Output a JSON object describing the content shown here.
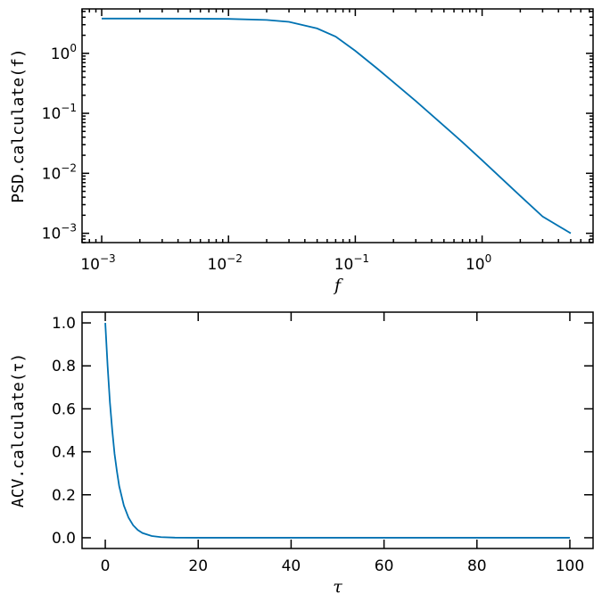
{
  "chart_data": [
    {
      "type": "line",
      "xscale": "log",
      "yscale": "log",
      "xlabel": "f",
      "ylabel": "PSD.calculate(f)",
      "xlim": [
        0.0007,
        7.5
      ],
      "ylim": [
        0.0007,
        5.5
      ],
      "x_ticks": [
        {
          "value": 0.001,
          "base": "10",
          "exp": "−3"
        },
        {
          "value": 0.01,
          "base": "10",
          "exp": "−2"
        },
        {
          "value": 0.1,
          "base": "10",
          "exp": "−1"
        },
        {
          "value": 1,
          "base": "10",
          "exp": "0"
        }
      ],
      "y_ticks": [
        {
          "value": 0.001,
          "base": "10",
          "exp": "−3"
        },
        {
          "value": 0.01,
          "base": "10",
          "exp": "−2"
        },
        {
          "value": 0.1,
          "base": "10",
          "exp": "−1"
        },
        {
          "value": 1,
          "base": "10",
          "exp": "0"
        }
      ],
      "color": "#0072b2",
      "series": [
        {
          "x": [
            0.001,
            0.002,
            0.005,
            0.01,
            0.02,
            0.03,
            0.05,
            0.07,
            0.1,
            0.15,
            0.2,
            0.3,
            0.5,
            0.7,
            1,
            2,
            3,
            5
          ],
          "y": [
            3.8,
            3.8,
            3.78,
            3.75,
            3.6,
            3.35,
            2.6,
            1.9,
            1.1,
            0.55,
            0.33,
            0.16,
            0.062,
            0.033,
            0.0165,
            0.0042,
            0.0019,
            0.001
          ]
        }
      ]
    },
    {
      "type": "line",
      "xscale": "linear",
      "yscale": "linear",
      "xlabel": "τ",
      "ylabel": "ACV.calculate(τ)",
      "xlim": [
        -5,
        105
      ],
      "ylim": [
        -0.05,
        1.05
      ],
      "x_ticks": [
        "0",
        "20",
        "40",
        "60",
        "80",
        "100"
      ],
      "y_ticks": [
        "0.0",
        "0.2",
        "0.4",
        "0.6",
        "0.8",
        "1.0"
      ],
      "color": "#0072b2",
      "series": [
        {
          "x": [
            0,
            0.5,
            1,
            1.5,
            2,
            2.5,
            3,
            4,
            5,
            6,
            7,
            8,
            10,
            12,
            15,
            20,
            30,
            50,
            100
          ],
          "y": [
            1.0,
            0.8,
            0.63,
            0.5,
            0.39,
            0.31,
            0.24,
            0.15,
            0.094,
            0.058,
            0.036,
            0.022,
            0.008,
            0.003,
            0.0006,
            0,
            0,
            0,
            0
          ]
        }
      ]
    }
  ]
}
